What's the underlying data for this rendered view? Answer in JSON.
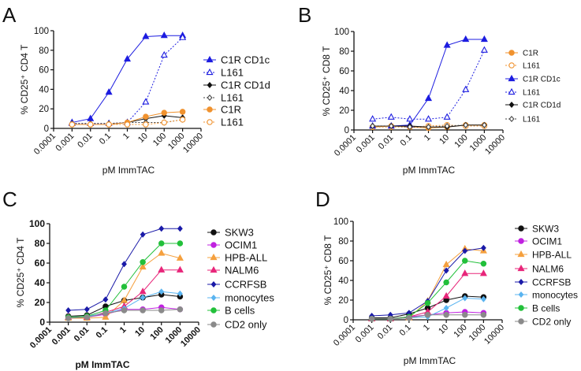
{
  "chart_data": [
    {
      "panel_label": "A",
      "type": "line",
      "xscale": "log",
      "xlabel": "pM ImmTAC",
      "ylabel": "% CD25⁺ CD4 T",
      "xlim": [
        0.0001,
        10000
      ],
      "ylim": [
        0,
        100
      ],
      "xticks": [
        "0.0001",
        "0.001",
        "0.01",
        "0.1",
        "1",
        "10",
        "100",
        "1000",
        "10000"
      ],
      "yticks": [
        "0",
        "20",
        "40",
        "60",
        "80",
        "100"
      ],
      "x": [
        0.001,
        0.01,
        0.1,
        1,
        10,
        100,
        1000
      ],
      "legend": "right",
      "series": [
        {
          "name": "C1R CD1c",
          "color": "#1c1ce0",
          "marker": "triangle",
          "filled": true,
          "dashed": false,
          "values": [
            6,
            10,
            37,
            71,
            94,
            95,
            95
          ]
        },
        {
          "name": "L161",
          "color": "#1c1ce0",
          "marker": "triangle",
          "filled": false,
          "dashed": true,
          "values": [
            5,
            5,
            5,
            6,
            27,
            75,
            93
          ]
        },
        {
          "name": "C1R CD1d",
          "color": "#111111",
          "marker": "diamond",
          "filled": true,
          "dashed": false,
          "values": [
            4,
            4,
            4,
            6,
            10,
            13,
            11
          ]
        },
        {
          "name": "L161",
          "color": "#444444",
          "marker": "diamond",
          "filled": false,
          "dashed": true,
          "values": [
            5,
            5,
            5,
            6,
            6,
            6,
            9
          ]
        },
        {
          "name": "C1R",
          "color": "#f0922e",
          "marker": "circle",
          "filled": true,
          "dashed": false,
          "values": [
            4,
            4,
            4,
            6,
            12,
            16,
            17
          ]
        },
        {
          "name": "L161",
          "color": "#f0922e",
          "marker": "circle",
          "filled": false,
          "dashed": true,
          "values": [
            4,
            4,
            4,
            4,
            4,
            6,
            9
          ]
        }
      ]
    },
    {
      "panel_label": "B",
      "type": "line",
      "xscale": "log",
      "xlabel": "pM ImmTAC",
      "ylabel": "% CD25⁺ CD8 T",
      "xlim": [
        0.0001,
        10000
      ],
      "ylim": [
        0,
        100
      ],
      "xticks": [
        "0.0001",
        "0.001",
        "0.01",
        "0.1",
        "1",
        "10",
        "100",
        "1000",
        "10000"
      ],
      "yticks": [
        "0",
        "20",
        "40",
        "60",
        "80",
        "100"
      ],
      "x": [
        0.001,
        0.01,
        0.1,
        1,
        10,
        100,
        1000
      ],
      "legend": "right",
      "series": [
        {
          "name": "C1R",
          "color": "#f0922e",
          "marker": "circle",
          "filled": true,
          "dashed": false,
          "values": [
            3,
            4,
            3,
            2,
            3,
            5,
            5
          ]
        },
        {
          "name": "L161",
          "color": "#f0922e",
          "marker": "circle",
          "filled": false,
          "dashed": true,
          "values": [
            3,
            3,
            3,
            4,
            5,
            4,
            4
          ]
        },
        {
          "name": "C1R CD1c",
          "color": "#1c1ce0",
          "marker": "triangle",
          "filled": true,
          "dashed": false,
          "values": [
            4,
            4,
            5,
            32,
            86,
            92,
            92
          ]
        },
        {
          "name": "L161",
          "color": "#1c1ce0",
          "marker": "triangle",
          "filled": false,
          "dashed": true,
          "values": [
            11,
            13,
            11,
            11,
            13,
            41,
            81
          ]
        },
        {
          "name": "C1R CD1d",
          "color": "#111111",
          "marker": "diamond",
          "filled": true,
          "dashed": false,
          "values": [
            4,
            4,
            4,
            3,
            3,
            5,
            5
          ]
        },
        {
          "name": "L161",
          "color": "#444444",
          "marker": "diamond",
          "filled": false,
          "dashed": true,
          "values": [
            4,
            4,
            3,
            3,
            4,
            5,
            5
          ]
        }
      ]
    },
    {
      "panel_label": "C",
      "type": "line",
      "xscale": "log",
      "xlabel": "pM ImmTAC",
      "ylabel": "% CD25⁺ CD4 T",
      "xlim": [
        0.0001,
        10000
      ],
      "ylim": [
        0,
        100
      ],
      "xticks": [
        "0.0001",
        "0.001",
        "0.01",
        "0.1",
        "1",
        "10",
        "100",
        "1000",
        "10000"
      ],
      "yticks": [
        "0",
        "20",
        "40",
        "60",
        "80",
        "100"
      ],
      "x": [
        0.001,
        0.01,
        0.1,
        1,
        10,
        100,
        1000
      ],
      "legend": "right",
      "series": [
        {
          "name": "SKW3",
          "color": "#111111",
          "marker": "circle",
          "filled": true,
          "dashed": false,
          "values": [
            6,
            7,
            16,
            22,
            25,
            28,
            26
          ]
        },
        {
          "name": "OCIM1",
          "color": "#c021e0",
          "marker": "circle",
          "filled": true,
          "dashed": false,
          "values": [
            5,
            5,
            8,
            13,
            13,
            15,
            13
          ]
        },
        {
          "name": "HPB-ALL",
          "color": "#f5a03e",
          "marker": "triangle",
          "filled": true,
          "dashed": false,
          "values": [
            4,
            4,
            5,
            22,
            56,
            70,
            65
          ]
        },
        {
          "name": "NALM6",
          "color": "#e8267a",
          "marker": "triangle",
          "filled": true,
          "dashed": false,
          "values": [
            5,
            5,
            10,
            16,
            31,
            53,
            53
          ]
        },
        {
          "name": "CCRFSB",
          "color": "#1a1aa8",
          "marker": "diamond",
          "filled": true,
          "dashed": false,
          "values": [
            12,
            13,
            23,
            59,
            89,
            95,
            95
          ]
        },
        {
          "name": "monocytes",
          "color": "#5ab4f0",
          "marker": "diamond",
          "filled": true,
          "dashed": false,
          "values": [
            5,
            6,
            9,
            14,
            25,
            31,
            29
          ]
        },
        {
          "name": "B cells",
          "color": "#22c03a",
          "marker": "circle",
          "filled": true,
          "dashed": false,
          "values": [
            5,
            6,
            12,
            36,
            61,
            80,
            80
          ]
        },
        {
          "name": "CD2 only",
          "color": "#8a8a8a",
          "marker": "circle",
          "filled": true,
          "dashed": false,
          "values": [
            4,
            5,
            9,
            12,
            12,
            12,
            13
          ]
        }
      ]
    },
    {
      "panel_label": "D",
      "type": "line",
      "xscale": "log",
      "xlabel": "pM ImmTAC",
      "ylabel": "% CD25⁺ CD8 T",
      "xlim": [
        0.0001,
        10000
      ],
      "ylim": [
        0,
        100
      ],
      "xticks": [
        "0.0001",
        "0.001",
        "0.01",
        "0.1",
        "1",
        "10",
        "100",
        "1000",
        "10000"
      ],
      "yticks": [
        "0",
        "20",
        "40",
        "60",
        "80",
        "100"
      ],
      "x": [
        0.001,
        0.01,
        0.1,
        1,
        10,
        100,
        1000
      ],
      "legend": "right",
      "series": [
        {
          "name": "SKW3",
          "color": "#111111",
          "marker": "circle",
          "filled": true,
          "dashed": false,
          "values": [
            2,
            2,
            6,
            12,
            20,
            24,
            23
          ]
        },
        {
          "name": "OCIM1",
          "color": "#c021e0",
          "marker": "circle",
          "filled": true,
          "dashed": false,
          "values": [
            1,
            1,
            3,
            5,
            7,
            8,
            7
          ]
        },
        {
          "name": "HPB-ALL",
          "color": "#f5a03e",
          "marker": "triangle",
          "filled": true,
          "dashed": false,
          "values": [
            1,
            1,
            2,
            19,
            56,
            72,
            70
          ]
        },
        {
          "name": "NALM6",
          "color": "#e8267a",
          "marker": "triangle",
          "filled": true,
          "dashed": false,
          "values": [
            1,
            1,
            3,
            8,
            24,
            47,
            47
          ]
        },
        {
          "name": "CCRFSB",
          "color": "#1a1aa8",
          "marker": "diamond",
          "filled": true,
          "dashed": false,
          "values": [
            4,
            5,
            7,
            19,
            50,
            70,
            73
          ]
        },
        {
          "name": "monocytes",
          "color": "#5ab4f0",
          "marker": "diamond",
          "filled": true,
          "dashed": false,
          "values": [
            1,
            1,
            2,
            3,
            12,
            22,
            21
          ]
        },
        {
          "name": "B cells",
          "color": "#22c03a",
          "marker": "circle",
          "filled": true,
          "dashed": false,
          "values": [
            1,
            1,
            3,
            17,
            38,
            60,
            57
          ]
        },
        {
          "name": "CD2 only",
          "color": "#8a8a8a",
          "marker": "circle",
          "filled": true,
          "dashed": false,
          "values": [
            1,
            1,
            2,
            5,
            5,
            5,
            5
          ]
        }
      ]
    }
  ]
}
